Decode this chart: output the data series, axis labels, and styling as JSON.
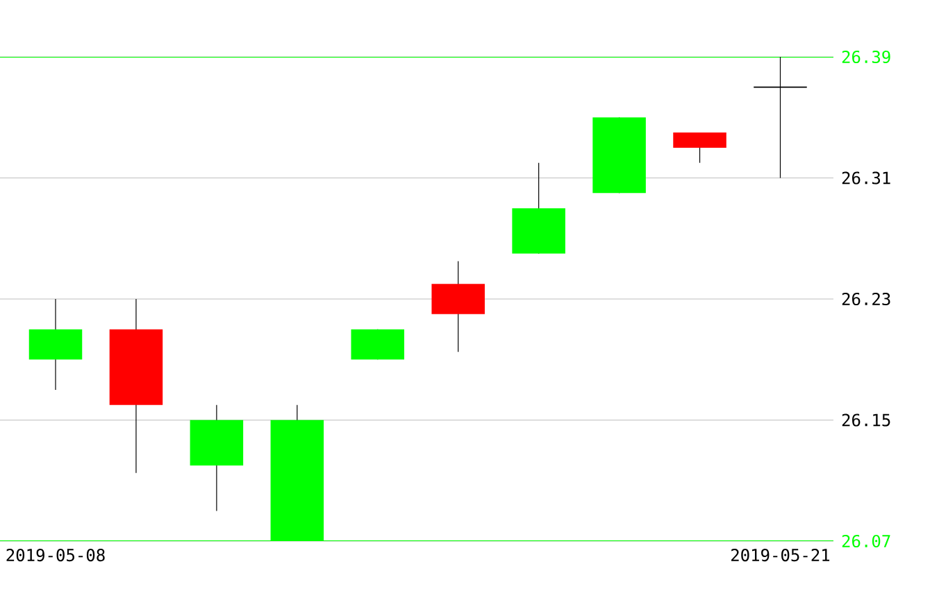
{
  "chart_data": {
    "type": "candlestick",
    "categories": [
      "2019-05-08",
      null,
      null,
      null,
      null,
      null,
      null,
      null,
      null,
      "2019-05-21"
    ],
    "ohlc": [
      [
        26.19,
        26.23,
        26.17,
        26.21
      ],
      [
        26.21,
        26.23,
        26.115,
        26.16
      ],
      [
        26.12,
        26.16,
        26.09,
        26.15
      ],
      [
        26.07,
        26.16,
        26.07,
        26.15
      ],
      [
        26.19,
        26.21,
        26.19,
        26.21
      ],
      [
        26.24,
        26.255,
        26.195,
        26.22
      ],
      [
        26.26,
        26.32,
        26.26,
        26.29
      ],
      [
        26.3,
        26.35,
        26.3,
        26.35
      ],
      [
        26.34,
        26.34,
        26.32,
        26.33
      ],
      [
        26.37,
        26.39,
        26.31,
        26.37
      ]
    ],
    "colors": [
      "#00ff00",
      "#ff0000",
      "#00ff00",
      "#00ff00",
      "#00ff00",
      "#ff0000",
      "#00ff00",
      "#00ff00",
      "#ff0000",
      "#000000"
    ],
    "ylim": [
      26.07,
      26.39
    ],
    "yticks": [
      26.07,
      26.15,
      26.23,
      26.31,
      26.39
    ],
    "grid": "y"
  }
}
